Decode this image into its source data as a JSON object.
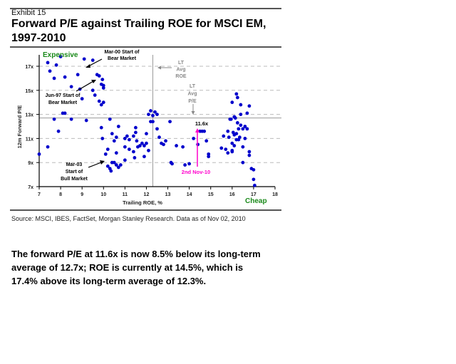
{
  "header": {
    "exhibit": "Exhibit 15",
    "title": "Forward P/E against Trailing ROE for MSCI EM, 1997-2010"
  },
  "footer": {
    "source": "Source: MSCI, IBES, FactSet, Morgan Stanley Research. Data as of Nov 02, 2010"
  },
  "summary": "The forward P/E at 11.6x is now 8.5% below its long-term average of 12.7x; ROE is currently at 14.5%, which is 17.4% above its long-term average of 12.3%.",
  "colors": {
    "points": "#0000cc",
    "expensive": "#1a8a1a",
    "cheap": "#1a8a1a",
    "current": "#ff00cc",
    "lt_avg": "#888888",
    "grid": "#bbbbbb"
  },
  "chart_data": {
    "type": "scatter",
    "title": "Forward P/E against Trailing ROE for MSCI EM, 1997-2010",
    "xlabel": "Trailing ROE, %",
    "ylabel": "12m Forward P/E",
    "xlim": [
      7,
      18
    ],
    "ylim": [
      7,
      17.9
    ],
    "x_ticks": [
      "7",
      "8",
      "9",
      "10",
      "11",
      "12",
      "13",
      "14",
      "15",
      "16",
      "17",
      "18"
    ],
    "y_ticks": [
      "7x",
      "9x",
      "11x",
      "13x",
      "15x",
      "17x"
    ],
    "y_tick_values": [
      7,
      9,
      11,
      13,
      15,
      17
    ],
    "grid": "horizontal-dashed",
    "corner_labels": {
      "top_left": "Expensive",
      "bottom_right": "Cheap"
    },
    "reference_lines": {
      "lt_avg_roe": {
        "value": 12.3,
        "label": [
          "LT",
          "Avg",
          "ROE"
        ]
      },
      "lt_avg_pe": {
        "value": 12.7,
        "label": [
          "LT",
          "Avg",
          "P/E"
        ]
      }
    },
    "current_point": {
      "x": 14.5,
      "y": 11.6,
      "value_label": "11.6x",
      "date_label": "2nd Nov-10"
    },
    "annotations": [
      {
        "text": [
          "Mar-00 Start of",
          "Bear Market"
        ],
        "target_x": 8.9,
        "target_y": 17.1
      },
      {
        "text": [
          "Jun-97 Start of",
          "Bear Market"
        ],
        "target_x": 9.8,
        "target_y": 15.9
      },
      {
        "text": [
          "Mar-03",
          "Start of",
          "Bull Market"
        ],
        "target_x": 10.0,
        "target_y": 9.5
      }
    ],
    "series": [
      {
        "name": "MSCI EM monthly",
        "points": [
          [
            7.0,
            9.7
          ],
          [
            7.4,
            10.3
          ],
          [
            7.7,
            12.6
          ],
          [
            7.9,
            11.6
          ],
          [
            8.1,
            13.1
          ],
          [
            8.2,
            13.1
          ],
          [
            8.5,
            12.6
          ],
          [
            9.0,
            14.3
          ],
          [
            9.2,
            12.5
          ],
          [
            7.4,
            17.3
          ],
          [
            7.5,
            16.6
          ],
          [
            7.8,
            17.1
          ],
          [
            7.7,
            16.0
          ],
          [
            8.0,
            17.8
          ],
          [
            8.2,
            16.1
          ],
          [
            8.5,
            15.3
          ],
          [
            8.8,
            16.3
          ],
          [
            8.9,
            15.1
          ],
          [
            9.1,
            17.6
          ],
          [
            9.5,
            15.0
          ],
          [
            9.6,
            14.6
          ],
          [
            9.5,
            17.5
          ],
          [
            9.7,
            16.3
          ],
          [
            9.8,
            16.2
          ],
          [
            9.8,
            14.1
          ],
          [
            9.95,
            15.9
          ],
          [
            9.9,
            15.5
          ],
          [
            10.0,
            15.4
          ],
          [
            10.0,
            15.2
          ],
          [
            10.0,
            14.0
          ],
          [
            9.9,
            13.8
          ],
          [
            9.9,
            11.9
          ],
          [
            9.95,
            11.0
          ],
          [
            10.1,
            9.7
          ],
          [
            10.2,
            10.1
          ],
          [
            10.2,
            8.7
          ],
          [
            10.3,
            8.5
          ],
          [
            10.35,
            8.3
          ],
          [
            10.3,
            12.6
          ],
          [
            10.4,
            11.4
          ],
          [
            10.4,
            9.0
          ],
          [
            10.5,
            10.8
          ],
          [
            10.5,
            9.0
          ],
          [
            10.6,
            11.1
          ],
          [
            10.6,
            9.8
          ],
          [
            10.6,
            8.8
          ],
          [
            10.7,
            8.6
          ],
          [
            10.7,
            12.0
          ],
          [
            10.8,
            8.8
          ],
          [
            11.0,
            11.0
          ],
          [
            11.0,
            10.3
          ],
          [
            11.0,
            9.2
          ],
          [
            11.1,
            11.2
          ],
          [
            11.2,
            10.1
          ],
          [
            11.2,
            10.9
          ],
          [
            11.4,
            11.2
          ],
          [
            11.4,
            9.9
          ],
          [
            11.45,
            9.4
          ],
          [
            11.5,
            11.5
          ],
          [
            11.5,
            11.9
          ],
          [
            11.55,
            10.8
          ],
          [
            11.6,
            10.3
          ],
          [
            11.7,
            10.4
          ],
          [
            11.8,
            10.6
          ],
          [
            11.9,
            9.5
          ],
          [
            11.9,
            10.4
          ],
          [
            12.0,
            11.4
          ],
          [
            12.0,
            10.6
          ],
          [
            12.1,
            10.0
          ],
          [
            12.2,
            12.4
          ],
          [
            12.2,
            13.3
          ],
          [
            12.1,
            13.0
          ],
          [
            12.3,
            12.9
          ],
          [
            12.3,
            12.4
          ],
          [
            12.4,
            13.2
          ],
          [
            12.5,
            13.0
          ],
          [
            12.5,
            11.8
          ],
          [
            12.6,
            11.1
          ],
          [
            12.7,
            10.6
          ],
          [
            12.8,
            10.5
          ],
          [
            12.9,
            10.8
          ],
          [
            13.1,
            12.4
          ],
          [
            13.15,
            9.0
          ],
          [
            13.2,
            8.9
          ],
          [
            13.4,
            10.4
          ],
          [
            13.7,
            10.3
          ],
          [
            13.8,
            8.8
          ],
          [
            14.0,
            8.9
          ],
          [
            14.2,
            11.0
          ],
          [
            14.4,
            10.5
          ],
          [
            14.5,
            11.6
          ],
          [
            14.6,
            11.6
          ],
          [
            14.7,
            11.6
          ],
          [
            14.8,
            10.8
          ],
          [
            14.9,
            9.5
          ],
          [
            14.9,
            9.7
          ],
          [
            15.5,
            10.2
          ],
          [
            15.6,
            11.2
          ],
          [
            15.7,
            10.1
          ],
          [
            15.8,
            9.8
          ],
          [
            15.8,
            11.6
          ],
          [
            15.85,
            11.1
          ],
          [
            15.9,
            12.6
          ],
          [
            15.95,
            12.6
          ],
          [
            16.0,
            10.0
          ],
          [
            16.0,
            9.9
          ],
          [
            16.0,
            10.6
          ],
          [
            16.05,
            11.5
          ],
          [
            16.1,
            11.3
          ],
          [
            16.1,
            10.4
          ],
          [
            16.15,
            12.7
          ],
          [
            16.2,
            10.9
          ],
          [
            16.2,
            11.4
          ],
          [
            16.25,
            12.3
          ],
          [
            16.3,
            11.8
          ],
          [
            16.3,
            10.9
          ],
          [
            16.35,
            11.1
          ],
          [
            16.4,
            12.1
          ],
          [
            16.5,
            11.8
          ],
          [
            16.5,
            9.0
          ],
          [
            16.5,
            10.3
          ],
          [
            16.6,
            12.0
          ],
          [
            16.6,
            11.0
          ],
          [
            16.7,
            13.1
          ],
          [
            16.7,
            11.8
          ],
          [
            16.8,
            13.7
          ],
          [
            16.8,
            9.9
          ],
          [
            16.9,
            8.5
          ],
          [
            17.0,
            7.6
          ],
          [
            17.05,
            7.1
          ],
          [
            17.0,
            8.4
          ],
          [
            16.8,
            9.6
          ],
          [
            16.2,
            14.7
          ],
          [
            16.25,
            14.4
          ],
          [
            16.4,
            13.8
          ],
          [
            16.0,
            14.0
          ],
          [
            16.4,
            13.0
          ],
          [
            16.1,
            12.8
          ]
        ]
      }
    ]
  }
}
